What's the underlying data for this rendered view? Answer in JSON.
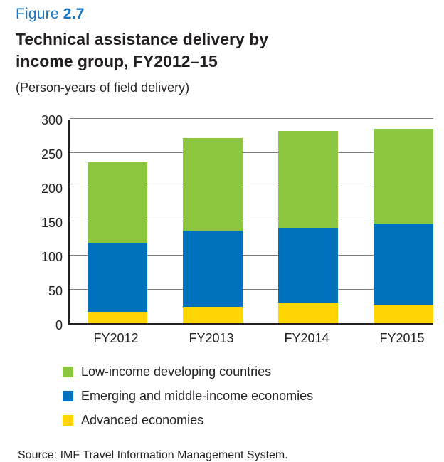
{
  "figure": {
    "label": "Figure",
    "number": "2.7"
  },
  "title_line1": "Technical assistance delivery by",
  "title_line2": "income group, FY2012–15",
  "subtitle": "(Person-years of field delivery)",
  "source": "Source: IMF Travel Information Management System.",
  "colors": {
    "figure_label_blue": "#1B75BC",
    "green": "#8CC63F",
    "blue": "#0071BC",
    "yellow": "#FED500",
    "gridline": "#808080",
    "axis": "#231F20",
    "text": "#231F20"
  },
  "chart_data": {
    "type": "bar",
    "stacked": true,
    "title": "Technical assistance delivery by income group, FY2012–15",
    "subtitle": "(Person-years of field delivery)",
    "categories": [
      "FY2012",
      "FY2013",
      "FY2014",
      "FY2015"
    ],
    "series": [
      {
        "name": "Advanced economies",
        "color_key": "yellow",
        "values": [
          17,
          24,
          30,
          27
        ]
      },
      {
        "name": "Emerging and middle-income economies",
        "color_key": "blue",
        "values": [
          101,
          111,
          110,
          119
        ]
      },
      {
        "name": "Low-income developing countries",
        "color_key": "green",
        "values": [
          117,
          136,
          141,
          138
        ]
      }
    ],
    "stack_totals": [
      235,
      271,
      281,
      284
    ],
    "xlabel": "",
    "ylabel": "",
    "ylim": [
      0,
      300
    ],
    "yticks": [
      0,
      50,
      100,
      150,
      200,
      250,
      300
    ],
    "grid": true,
    "legend_position": "bottom",
    "legend_order": [
      "Low-income developing countries",
      "Emerging and middle-income economies",
      "Advanced economies"
    ]
  }
}
